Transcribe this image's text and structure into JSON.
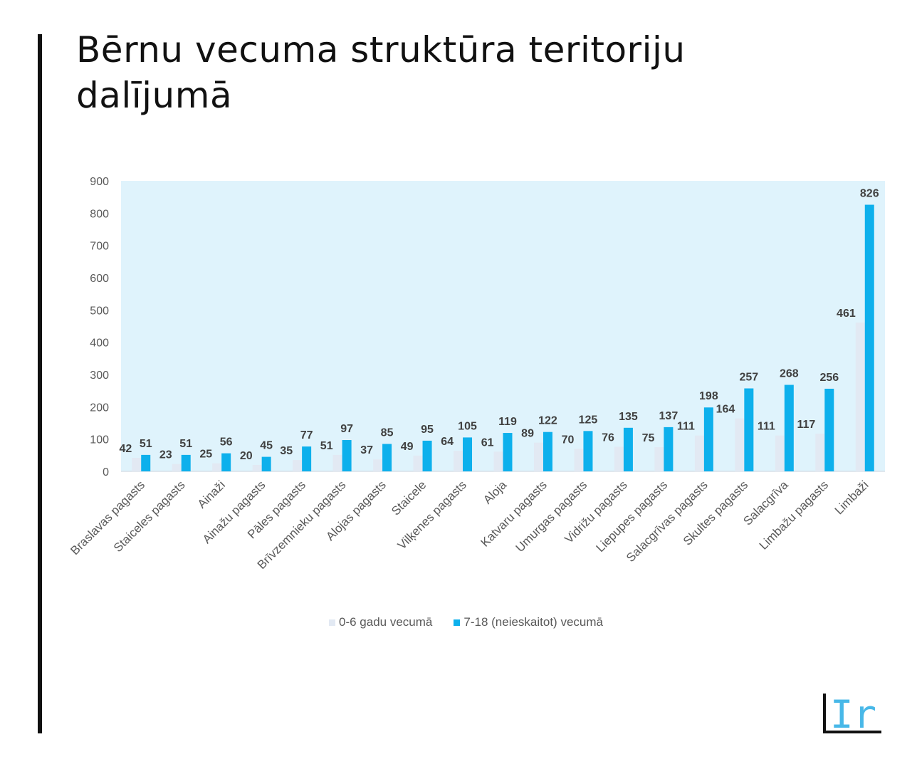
{
  "title": "Bērnu vecuma struktūra teritoriju dalījumā",
  "logo_text": "Ir!",
  "colors": {
    "series_young": "#e2e9f3",
    "series_old": "#0db0ec",
    "plot_background": "#dff3fc",
    "label_dark": "#404040",
    "axis_text": "#595959"
  },
  "chart_data": {
    "type": "bar",
    "title": "",
    "xlabel": "",
    "ylabel": "",
    "ylim": [
      0,
      900
    ],
    "yticks": [
      0,
      100,
      200,
      300,
      400,
      500,
      600,
      700,
      800,
      900
    ],
    "grid": false,
    "legend_position": "bottom",
    "categories": [
      "Braslavas pagasts",
      "Staiceles pagasts",
      "Ainaži",
      "Ainažu pagasts",
      "Pāles pagasts",
      "Brīvzemnieku pagasts",
      "Alojas pagasts",
      "Staicele",
      "Vilķenes pagasts",
      "Aloja",
      "Katvaru pagasts",
      "Umurgas pagasts",
      "Vidrižu pagasts",
      "Liepupes pagasts",
      "Salacgrīvas pagasts",
      "Skultes pagasts",
      "Salacgrīva",
      "Limbažu pagasts",
      "Limbaži"
    ],
    "series": [
      {
        "name": "0-6 gadu vecumā",
        "values": [
          42,
          23,
          25,
          20,
          35,
          51,
          37,
          49,
          64,
          61,
          89,
          70,
          76,
          75,
          111,
          164,
          111,
          117,
          461
        ]
      },
      {
        "name": "7-18 (neieskaitot) vecumā",
        "values": [
          51,
          51,
          56,
          45,
          77,
          97,
          85,
          95,
          105,
          119,
          122,
          125,
          135,
          137,
          198,
          257,
          268,
          256,
          826
        ]
      }
    ]
  }
}
